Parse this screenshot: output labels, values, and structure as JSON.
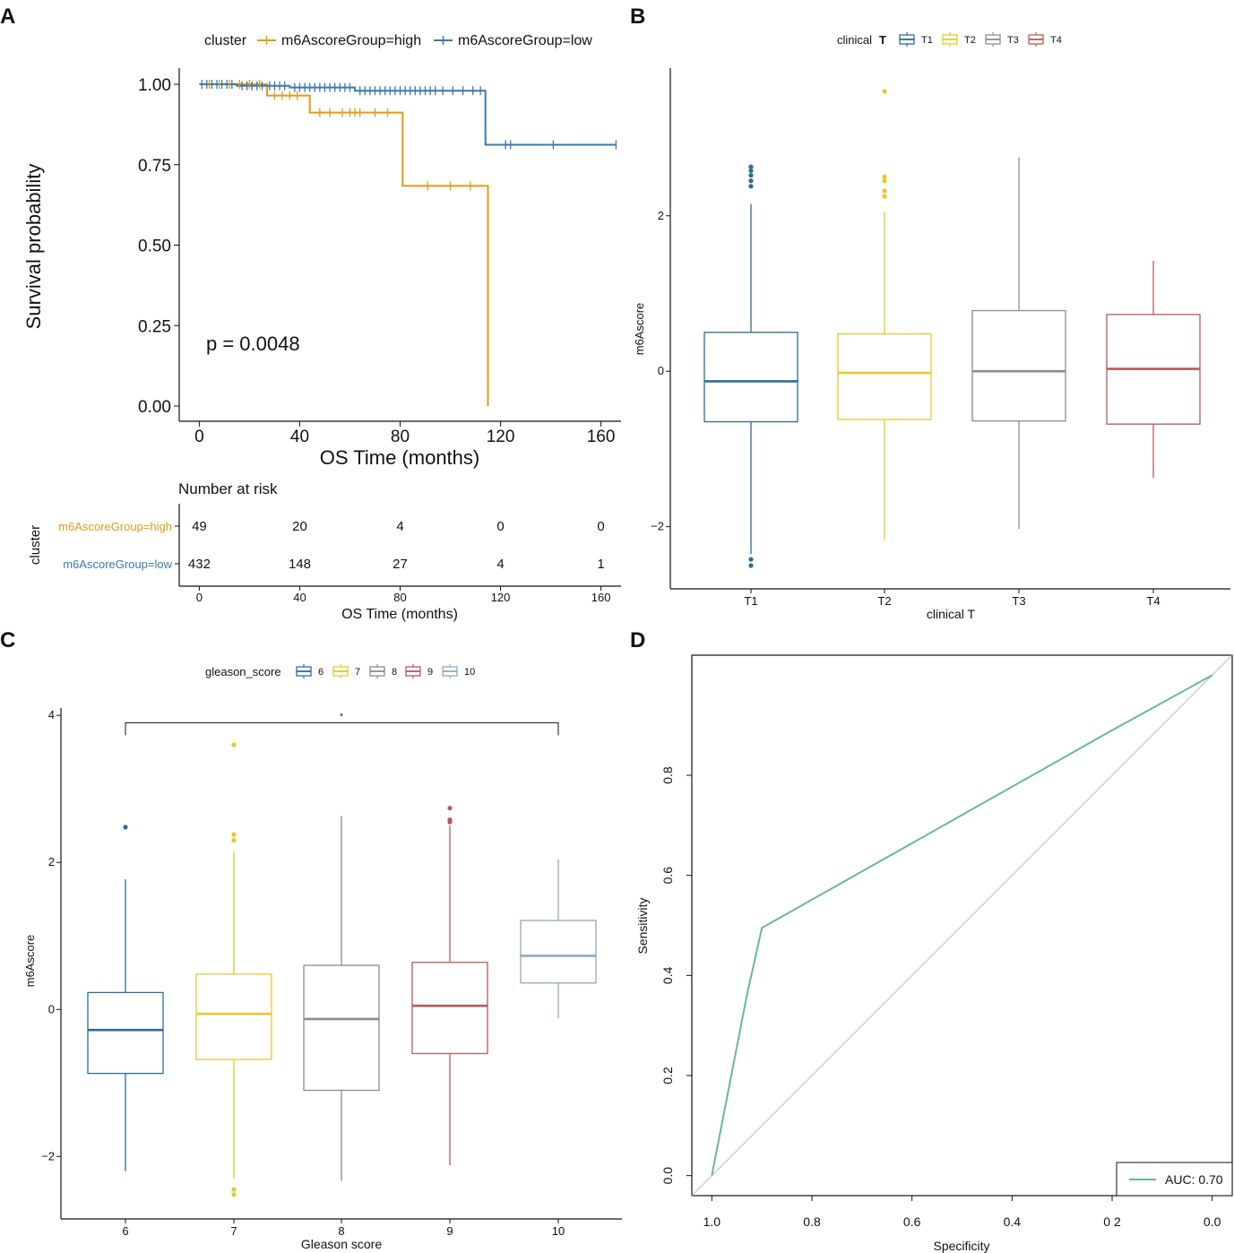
{
  "colors": {
    "high": "#E09B1A",
    "low": "#3A79B0",
    "T1": "#2A6E8F",
    "T2": "#E8C829",
    "T3": "#8C8C8C",
    "T4": "#B55A5A",
    "g6": "#2A6E9A",
    "g7": "#E8C829",
    "g8": "#8C8C8C",
    "g9": "#B55A5A",
    "g10": "#8FA9BF",
    "roc": "#6BB59F",
    "diag": "#BBBBBB"
  },
  "panels": {
    "A": {
      "letter": "A",
      "km": {
        "type": "line",
        "legend_title": "cluster",
        "legend_high": "m6AscoreGroup=high",
        "legend_low": "m6AscoreGroup=low",
        "ylabel": "Survival probability",
        "xlabel": "OS Time (months)",
        "p_value": "p = 0.0048",
        "xlim": [
          -8,
          168
        ],
        "ylim": [
          0,
          1
        ],
        "x_ticks": [
          0,
          40,
          80,
          120,
          160
        ],
        "y_ticks": [
          1.0,
          0.75,
          0.5,
          0.25,
          0.0
        ],
        "y_tick_labels": [
          "1.00",
          "0.75",
          "0.50",
          "0.25",
          "0.00"
        ],
        "series": [
          {
            "name": "m6AscoreGroup=high",
            "steps": [
              [
                0,
                1.0
              ],
              [
                27,
                1.0
              ],
              [
                27,
                0.965
              ],
              [
                44,
                0.965
              ],
              [
                44,
                0.912
              ],
              [
                81,
                0.912
              ],
              [
                81,
                0.684
              ],
              [
                115,
                0.684
              ],
              [
                115,
                0.0
              ]
            ],
            "censor": [
              4,
              8,
              12,
              16,
              20,
              24,
              30,
              33,
              36,
              39,
              48,
              52,
              57,
              60,
              62,
              64,
              70,
              75,
              91,
              100,
              108
            ]
          },
          {
            "name": "m6AscoreGroup=low",
            "steps": [
              [
                0,
                1.0
              ],
              [
                15,
                1.0
              ],
              [
                15,
                0.995
              ],
              [
                36,
                0.995
              ],
              [
                36,
                0.99
              ],
              [
                62,
                0.99
              ],
              [
                62,
                0.98
              ],
              [
                114,
                0.98
              ],
              [
                114,
                0.812
              ],
              [
                166,
                0.812
              ]
            ],
            "censor": [
              1,
              3,
              5,
              7,
              9,
              11,
              13,
              17,
              19,
              21,
              23,
              25,
              28,
              30,
              32,
              34,
              38,
              40,
              42,
              44,
              46,
              48,
              50,
              52,
              54,
              56,
              58,
              60,
              64,
              66,
              68,
              70,
              72,
              74,
              76,
              78,
              80,
              82,
              84,
              86,
              88,
              90,
              92,
              94,
              97,
              101,
              105,
              109,
              112,
              122,
              124,
              141,
              166
            ]
          }
        ]
      },
      "risk": {
        "title": "Number at risk",
        "ylabel": "cluster",
        "xlabel": "OS Time (months)",
        "rows": [
          {
            "label": "m6AscoreGroup=high",
            "values": [
              "49",
              "20",
              "4",
              "0",
              "0"
            ]
          },
          {
            "label": "m6AscoreGroup=low",
            "values": [
              "432",
              "148",
              "27",
              "4",
              "1"
            ]
          }
        ],
        "times": [
          0,
          40,
          80,
          120,
          160
        ],
        "x_tick_labels": [
          "0",
          "40",
          "80",
          "120",
          "160"
        ]
      }
    },
    "B": {
      "letter": "B",
      "type": "box",
      "legend_title_a": "clinical",
      "legend_title_b": "T",
      "xlabel": "clinical  T",
      "ylabel": "m6Ascore",
      "ylim": [
        -2.8,
        3.9
      ],
      "y_ticks": [
        2,
        0,
        -2
      ],
      "y_tick_labels": [
        "2",
        "0",
        "−2"
      ],
      "groups": [
        {
          "label": "T1",
          "ckey": "T1",
          "q1": -0.65,
          "median": -0.13,
          "q3": 0.5,
          "wlo": -2.35,
          "whi": 2.15,
          "outliers": [
            2.38,
            2.45,
            2.52,
            2.58,
            2.63,
            -2.42,
            -2.5
          ]
        },
        {
          "label": "T2",
          "ckey": "T2",
          "q1": -0.62,
          "median": -0.02,
          "q3": 0.48,
          "wlo": -2.18,
          "whi": 2.05,
          "outliers": [
            3.6,
            2.25,
            2.32,
            2.45,
            2.5
          ]
        },
        {
          "label": "T3",
          "ckey": "T3",
          "q1": -0.64,
          "median": 0.0,
          "q3": 0.78,
          "wlo": -2.03,
          "whi": 2.75,
          "outliers": []
        },
        {
          "label": "T4",
          "ckey": "T4",
          "q1": -0.68,
          "median": 0.03,
          "q3": 0.73,
          "wlo": -1.37,
          "whi": 1.42,
          "outliers": []
        }
      ]
    },
    "C": {
      "letter": "C",
      "type": "box",
      "legend_title": "gleason_score",
      "xlabel": "Gleason score",
      "ylabel": "m6Ascore",
      "sig_label": "*",
      "sig_y": 3.9,
      "ylim": [
        -2.85,
        4.1
      ],
      "y_ticks": [
        4,
        2,
        0,
        -2
      ],
      "y_tick_labels": [
        "4",
        "2",
        "0",
        "−2"
      ],
      "groups": [
        {
          "label": "6",
          "ckey": "g6",
          "q1": -0.87,
          "median": -0.28,
          "q3": 0.23,
          "wlo": -2.2,
          "whi": 1.77,
          "outliers": [
            2.48
          ]
        },
        {
          "label": "7",
          "ckey": "g7",
          "q1": -0.68,
          "median": -0.06,
          "q3": 0.48,
          "wlo": -2.3,
          "whi": 2.15,
          "outliers": [
            3.6,
            2.3,
            2.38,
            -2.45,
            -2.52
          ]
        },
        {
          "label": "8",
          "ckey": "g8",
          "q1": -1.1,
          "median": -0.13,
          "q3": 0.6,
          "wlo": -2.33,
          "whi": 2.63,
          "outliers": []
        },
        {
          "label": "9",
          "ckey": "g9",
          "q1": -0.6,
          "median": 0.05,
          "q3": 0.64,
          "wlo": -2.12,
          "whi": 2.5,
          "outliers": [
            2.55,
            2.58,
            2.74
          ]
        },
        {
          "label": "10",
          "ckey": "g10",
          "q1": 0.36,
          "median": 0.73,
          "q3": 1.21,
          "wlo": -0.12,
          "whi": 2.04,
          "outliers": []
        }
      ]
    },
    "D": {
      "letter": "D",
      "type": "line",
      "xlabel": "Specificity",
      "ylabel": "Sensitivity",
      "auc_label": "AUC: 0.70",
      "xlim": [
        1.04,
        -0.04
      ],
      "ylim": [
        -0.04,
        1.04
      ],
      "x_ticks": [
        1.0,
        0.8,
        0.6,
        0.4,
        0.2,
        0.0
      ],
      "x_tick_labels": [
        "1.0",
        "0.8",
        "0.6",
        "0.4",
        "0 2",
        "0.0"
      ],
      "y_ticks": [
        0.0,
        0.2,
        0.4,
        0.6,
        0.8
      ],
      "y_tick_labels": [
        "0.0",
        "0.2",
        "0.4",
        "0.6",
        "0.8"
      ],
      "roc": {
        "specificity": [
          1.0,
          0.93,
          0.9,
          0.2,
          0.0
        ],
        "sensitivity": [
          0.0,
          0.36,
          0.495,
          0.89,
          1.0
        ]
      }
    }
  }
}
